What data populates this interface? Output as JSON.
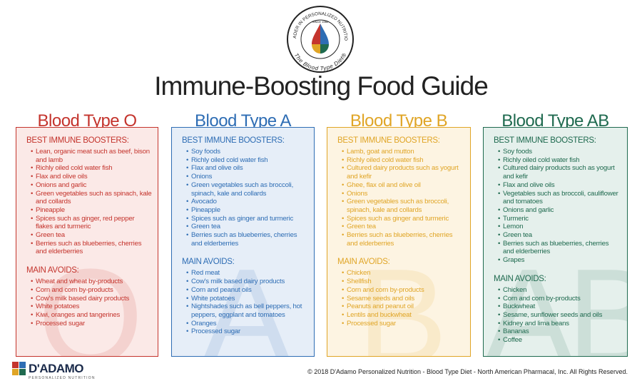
{
  "logo": {
    "ring_top": "LEADER IN PERSONALIZED NUTRITION",
    "since": "SINCE 1982",
    "ring_bottom": "The Blood Type Diet®"
  },
  "title": "Immune-Boosting Food Guide",
  "columns": [
    {
      "heading": "Blood Type O",
      "watermark": "O",
      "boosters_title": "BEST IMMUNE BOOSTERS:",
      "boosters": [
        "Lean, organic meat such as beef, bison and lamb",
        "Richly oiled cold water fish",
        "Flax and olive oils",
        "Onions and garlic",
        "Green vegetables such as spinach, kale and collards",
        "Pineapple",
        "Spices such as ginger, red pepper flakes and turmeric",
        "Green tea",
        "Berries such as blueberries, cherries and elderberries"
      ],
      "avoids_title": "MAIN AVOIDS:",
      "avoids": [
        "Wheat and wheat by-products",
        "Corn and corn by-products",
        "Cow's milk based dairy products",
        "White potatoes",
        "Kiwi, oranges and tangerines",
        "Processed sugar"
      ]
    },
    {
      "heading": "Blood Type A",
      "watermark": "A",
      "boosters_title": "BEST IMMUNE BOOSTERS:",
      "boosters": [
        "Soy foods",
        "Richly oiled cold water fish",
        "Flax and olive oils",
        "Onions",
        "Green vegetables such as broccoli, spinach, kale and collards",
        "Avocado",
        "Pineapple",
        "Spices such as ginger and turmeric",
        "Green tea",
        "Berries such as blueberries, cherries and elderberries"
      ],
      "avoids_title": "MAIN AVOIDS:",
      "avoids": [
        "Red meat",
        "Cow's milk based dairy products",
        "Corn and peanut oils",
        "White potatoes",
        "Nightshades such as bell peppers, hot peppers, eggplant and tomatoes",
        "Oranges",
        "Processed sugar"
      ]
    },
    {
      "heading": "Blood Type B",
      "watermark": "B",
      "boosters_title": "BEST IMMUNE BOOSTERS:",
      "boosters": [
        "Lamb, goat and mutton",
        "Richly oiled cold water fish",
        "Cultured dairy products such as yogurt and kefir",
        "Ghee, flax oil and olive oil",
        "Onions",
        "Green vegetables such as broccoli, spinach, kale and collards",
        "Spices such as ginger and turmeric",
        "Green tea",
        "Berries such as blueberries, cherries and elderberries"
      ],
      "avoids_title": "MAIN AVOIDS:",
      "avoids": [
        "Chicken",
        "Shellfish",
        "Corn and corn by-products",
        "Sesame seeds and oils",
        "Peanuts and peanut oil",
        "Lentils and buckwheat",
        "Processed sugar"
      ]
    },
    {
      "heading": "Blood Type AB",
      "watermark": "AB",
      "boosters_title": "BEST IMMUNE BOOSTERS:",
      "boosters": [
        "Soy foods",
        "Richly oiled cold water fish",
        "Cultured dairy products such as yogurt and kefir",
        "Flax and olive oils",
        "Vegetables such as broccoli, cauliflower and tomatoes",
        "Onions and garlic",
        "Turmeric",
        "Lemon",
        "Green tea",
        "Berries such as blueberries, cherries and elderberries",
        "Grapes"
      ],
      "avoids_title": "MAIN AVOIDS:",
      "avoids": [
        "Chicken",
        "Corn and corn by-products",
        "Buckwheat",
        "Sesame, sunflower seeds and oils",
        "Kidney and lima beans",
        "Bananas",
        "Coffee"
      ]
    }
  ],
  "footer": {
    "brand": "D'ADAMO",
    "brand_sub": "PERSONALIZED NUTRITION",
    "copyright": "© 2018 D'Adamo Personalized Nutrition - Blood Type Diet - North American Pharmacal, Inc. All Rights Reserved."
  }
}
